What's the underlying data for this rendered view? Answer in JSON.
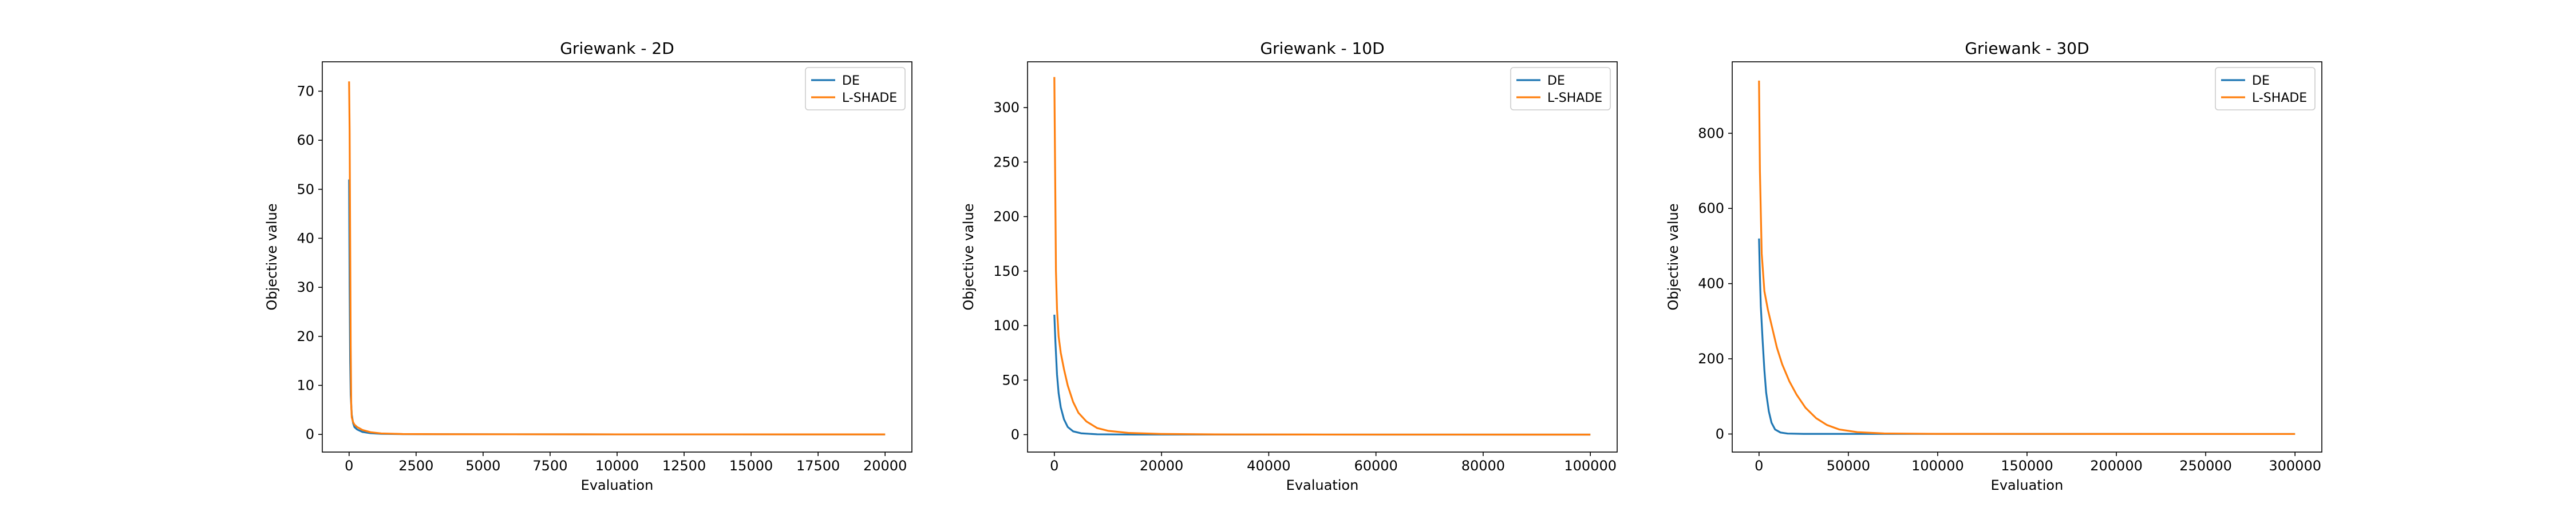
{
  "chart_data": [
    {
      "type": "line",
      "title": "Griewank - 2D",
      "xlabel": "Evaluation",
      "ylabel": "Objective value",
      "xlim": [
        -1000,
        21000
      ],
      "ylim": [
        -3.6,
        76
      ],
      "xticks": [
        0,
        2500,
        5000,
        7500,
        10000,
        12500,
        15000,
        17500,
        20000
      ],
      "xtick_labels": [
        "0",
        "2500",
        "5000",
        "7500",
        "10000",
        "12500",
        "15000",
        "17500",
        "20000"
      ],
      "yticks": [
        0,
        10,
        20,
        30,
        40,
        50,
        60,
        70
      ],
      "ytick_labels": [
        "0",
        "10",
        "20",
        "30",
        "40",
        "50",
        "60",
        "70"
      ],
      "legend_position": "upper right",
      "grid": false,
      "series": [
        {
          "name": "DE",
          "color": "#1f77b4",
          "points": [
            [
              0,
              52
            ],
            [
              20,
              30
            ],
            [
              40,
              15
            ],
            [
              60,
              8
            ],
            [
              100,
              4
            ],
            [
              150,
              2.3
            ],
            [
              200,
              1.5
            ],
            [
              300,
              1.0
            ],
            [
              500,
              0.5
            ],
            [
              800,
              0.25
            ],
            [
              1200,
              0.12
            ],
            [
              2000,
              0.06
            ],
            [
              4000,
              0.03
            ],
            [
              10000,
              0.01
            ],
            [
              20000,
              0.005
            ]
          ]
        },
        {
          "name": "L-SHADE",
          "color": "#ff7f0e",
          "points": [
            [
              0,
              72
            ],
            [
              20,
              62
            ],
            [
              40,
              40
            ],
            [
              60,
              18
            ],
            [
              80,
              6
            ],
            [
              100,
              3.5
            ],
            [
              150,
              2.5
            ],
            [
              200,
              2.0
            ],
            [
              300,
              1.5
            ],
            [
              500,
              0.9
            ],
            [
              800,
              0.45
            ],
            [
              1200,
              0.2
            ],
            [
              2000,
              0.08
            ],
            [
              4000,
              0.03
            ],
            [
              10000,
              0.01
            ],
            [
              20000,
              0.005
            ]
          ]
        }
      ]
    },
    {
      "type": "line",
      "title": "Griewank - 10D",
      "xlabel": "Evaluation",
      "ylabel": "Objective value",
      "xlim": [
        -5000,
        105000
      ],
      "ylim": [
        -16,
        342
      ],
      "xticks": [
        0,
        20000,
        40000,
        60000,
        80000,
        100000
      ],
      "xtick_labels": [
        "0",
        "20000",
        "40000",
        "60000",
        "80000",
        "100000"
      ],
      "yticks": [
        0,
        50,
        100,
        150,
        200,
        250,
        300
      ],
      "ytick_labels": [
        "0",
        "50",
        "100",
        "150",
        "200",
        "250",
        "300"
      ],
      "legend_position": "upper right",
      "grid": false,
      "series": [
        {
          "name": "DE",
          "color": "#1f77b4",
          "points": [
            [
              0,
              110
            ],
            [
              200,
              85
            ],
            [
              500,
              55
            ],
            [
              800,
              38
            ],
            [
              1200,
              25
            ],
            [
              1800,
              14
            ],
            [
              2500,
              7
            ],
            [
              3500,
              3
            ],
            [
              5000,
              1.2
            ],
            [
              8000,
              0.3
            ],
            [
              15000,
              0.05
            ],
            [
              100000,
              0.01
            ]
          ]
        },
        {
          "name": "L-SHADE",
          "color": "#ff7f0e",
          "points": [
            [
              0,
              328
            ],
            [
              150,
              240
            ],
            [
              300,
              150
            ],
            [
              500,
              115
            ],
            [
              800,
              90
            ],
            [
              1200,
              75
            ],
            [
              1800,
              60
            ],
            [
              2500,
              45
            ],
            [
              3500,
              30
            ],
            [
              4500,
              20
            ],
            [
              6000,
              12
            ],
            [
              8000,
              6
            ],
            [
              10000,
              3.5
            ],
            [
              14000,
              1.5
            ],
            [
              20000,
              0.6
            ],
            [
              30000,
              0.2
            ],
            [
              50000,
              0.05
            ],
            [
              100000,
              0.01
            ]
          ]
        }
      ]
    },
    {
      "type": "line",
      "title": "Griewank - 30D",
      "xlabel": "Evaluation",
      "ylabel": "Objective value",
      "xlim": [
        -15000,
        315000
      ],
      "ylim": [
        -48,
        990
      ],
      "xticks": [
        0,
        50000,
        100000,
        150000,
        200000,
        250000,
        300000
      ],
      "xtick_labels": [
        "0",
        "50000",
        "100000",
        "150000",
        "200000",
        "250000",
        "300000"
      ],
      "yticks": [
        0,
        200,
        400,
        600,
        800
      ],
      "ytick_labels": [
        "0",
        "200",
        "400",
        "600",
        "800"
      ],
      "legend_position": "upper right",
      "grid": false,
      "series": [
        {
          "name": "DE",
          "color": "#1f77b4",
          "points": [
            [
              0,
              520
            ],
            [
              500,
              420
            ],
            [
              1000,
              340
            ],
            [
              2000,
              250
            ],
            [
              3000,
              170
            ],
            [
              4000,
              110
            ],
            [
              5500,
              60
            ],
            [
              7000,
              30
            ],
            [
              9000,
              12
            ],
            [
              12000,
              4
            ],
            [
              16000,
              1.2
            ],
            [
              25000,
              0.3
            ],
            [
              300000,
              0.01
            ]
          ]
        },
        {
          "name": "L-SHADE",
          "color": "#ff7f0e",
          "points": [
            [
              0,
              940
            ],
            [
              500,
              700
            ],
            [
              1500,
              480
            ],
            [
              3000,
              380
            ],
            [
              5000,
              330
            ],
            [
              8000,
              270
            ],
            [
              10000,
              230
            ],
            [
              13000,
              185
            ],
            [
              17000,
              140
            ],
            [
              21000,
              105
            ],
            [
              26000,
              70
            ],
            [
              32000,
              42
            ],
            [
              38000,
              24
            ],
            [
              45000,
              12
            ],
            [
              55000,
              5
            ],
            [
              70000,
              1.5
            ],
            [
              100000,
              0.3
            ],
            [
              300000,
              0.02
            ]
          ]
        }
      ]
    }
  ]
}
